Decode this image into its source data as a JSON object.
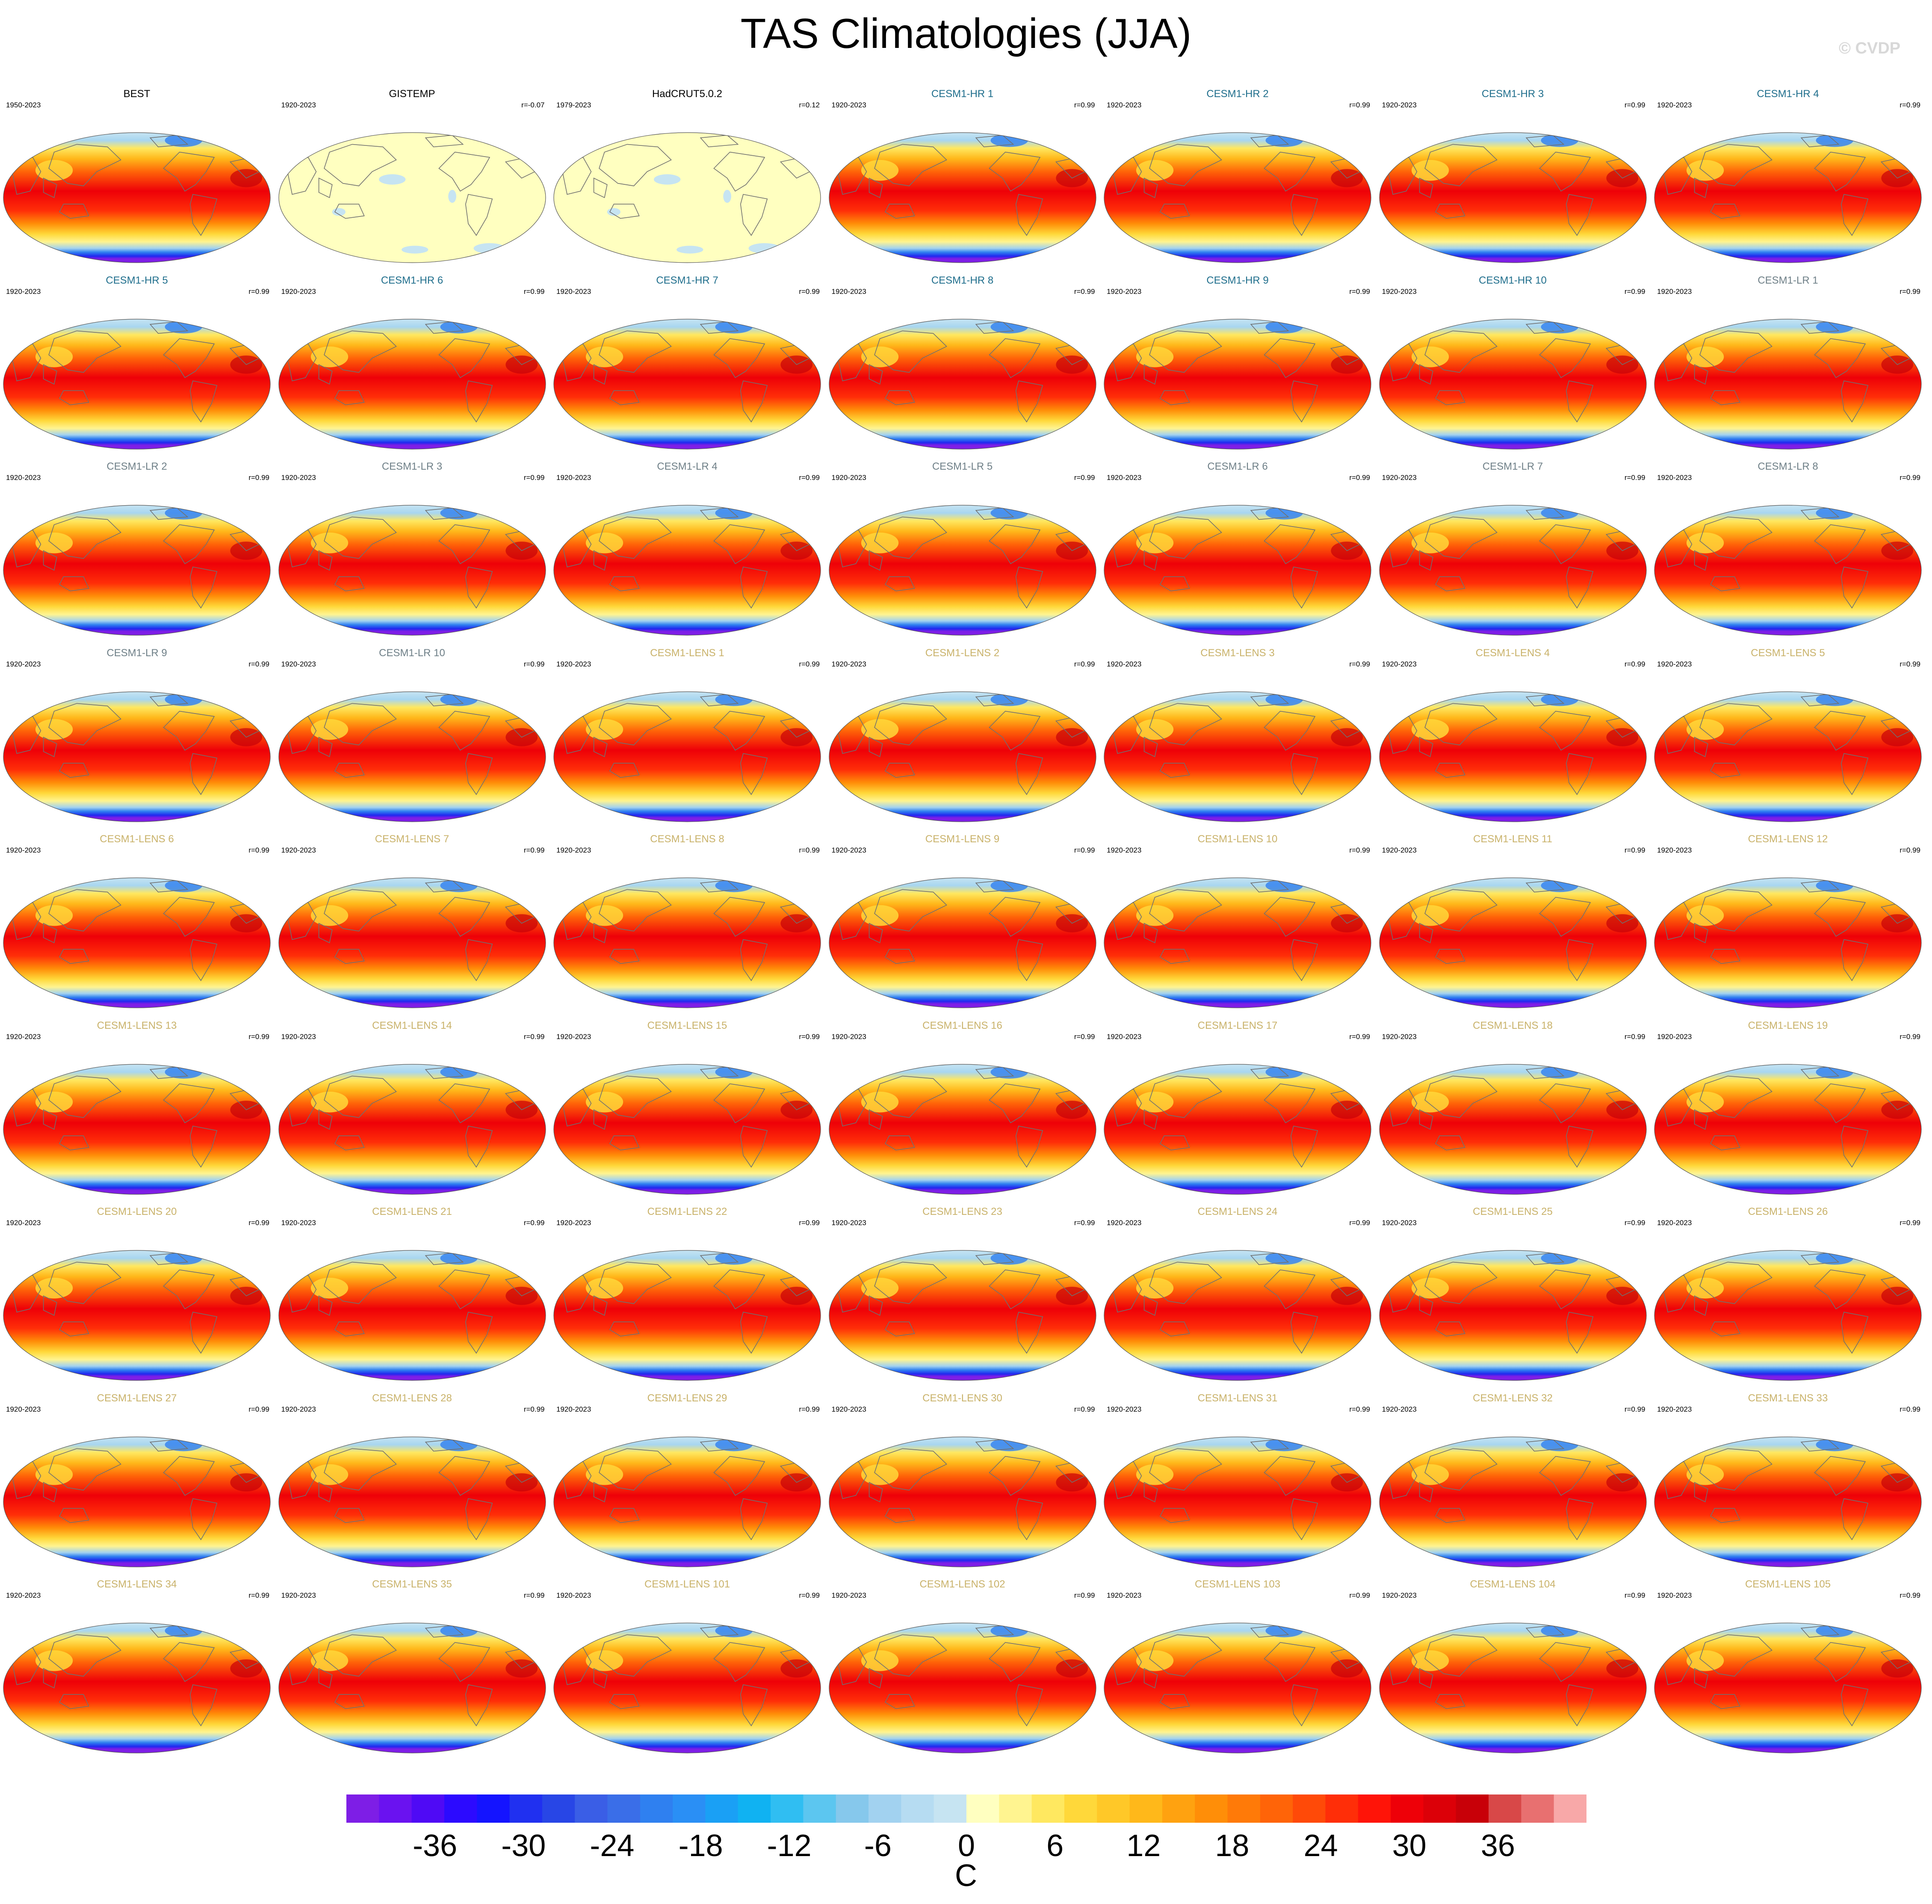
{
  "title": "TAS Climatologies (JJA)",
  "watermark": "© CVDP",
  "colors": {
    "obs_title": "#000000",
    "hr_title": "#1f6e8c",
    "lr_title": "#6e7f87",
    "lens_title": "#c9b26a"
  },
  "panels": [
    {
      "title": "BEST",
      "period": "1950-2023",
      "corr": "",
      "group": "obs",
      "field": "full"
    },
    {
      "title": "GISTEMP",
      "period": "1920-2023",
      "corr": "r=-0.07",
      "group": "obs",
      "field": "anomaly"
    },
    {
      "title": "HadCRUT5.0.2",
      "period": "1979-2023",
      "corr": "r=0.12",
      "group": "obs",
      "field": "anomaly"
    },
    {
      "title": "CESM1-HR 1",
      "period": "1920-2023",
      "corr": "r=0.99",
      "group": "hr",
      "field": "full"
    },
    {
      "title": "CESM1-HR 2",
      "period": "1920-2023",
      "corr": "r=0.99",
      "group": "hr",
      "field": "full"
    },
    {
      "title": "CESM1-HR 3",
      "period": "1920-2023",
      "corr": "r=0.99",
      "group": "hr",
      "field": "full"
    },
    {
      "title": "CESM1-HR 4",
      "period": "1920-2023",
      "corr": "r=0.99",
      "group": "hr",
      "field": "full"
    },
    {
      "title": "CESM1-HR 5",
      "period": "1920-2023",
      "corr": "r=0.99",
      "group": "hr",
      "field": "full"
    },
    {
      "title": "CESM1-HR 6",
      "period": "1920-2023",
      "corr": "r=0.99",
      "group": "hr",
      "field": "full"
    },
    {
      "title": "CESM1-HR 7",
      "period": "1920-2023",
      "corr": "r=0.99",
      "group": "hr",
      "field": "full"
    },
    {
      "title": "CESM1-HR 8",
      "period": "1920-2023",
      "corr": "r=0.99",
      "group": "hr",
      "field": "full"
    },
    {
      "title": "CESM1-HR 9",
      "period": "1920-2023",
      "corr": "r=0.99",
      "group": "hr",
      "field": "full"
    },
    {
      "title": "CESM1-HR 10",
      "period": "1920-2023",
      "corr": "r=0.99",
      "group": "hr",
      "field": "full"
    },
    {
      "title": "CESM1-LR 1",
      "period": "1920-2023",
      "corr": "r=0.99",
      "group": "lr",
      "field": "full"
    },
    {
      "title": "CESM1-LR 2",
      "period": "1920-2023",
      "corr": "r=0.99",
      "group": "lr",
      "field": "full"
    },
    {
      "title": "CESM1-LR 3",
      "period": "1920-2023",
      "corr": "r=0.99",
      "group": "lr",
      "field": "full"
    },
    {
      "title": "CESM1-LR 4",
      "period": "1920-2023",
      "corr": "r=0.99",
      "group": "lr",
      "field": "full"
    },
    {
      "title": "CESM1-LR 5",
      "period": "1920-2023",
      "corr": "r=0.99",
      "group": "lr",
      "field": "full"
    },
    {
      "title": "CESM1-LR 6",
      "period": "1920-2023",
      "corr": "r=0.99",
      "group": "lr",
      "field": "full"
    },
    {
      "title": "CESM1-LR 7",
      "period": "1920-2023",
      "corr": "r=0.99",
      "group": "lr",
      "field": "full"
    },
    {
      "title": "CESM1-LR 8",
      "period": "1920-2023",
      "corr": "r=0.99",
      "group": "lr",
      "field": "full"
    },
    {
      "title": "CESM1-LR 9",
      "period": "1920-2023",
      "corr": "r=0.99",
      "group": "lr",
      "field": "full"
    },
    {
      "title": "CESM1-LR 10",
      "period": "1920-2023",
      "corr": "r=0.99",
      "group": "lr",
      "field": "full"
    },
    {
      "title": "CESM1-LENS 1",
      "period": "1920-2023",
      "corr": "r=0.99",
      "group": "lens",
      "field": "full"
    },
    {
      "title": "CESM1-LENS 2",
      "period": "1920-2023",
      "corr": "r=0.99",
      "group": "lens",
      "field": "full"
    },
    {
      "title": "CESM1-LENS 3",
      "period": "1920-2023",
      "corr": "r=0.99",
      "group": "lens",
      "field": "full"
    },
    {
      "title": "CESM1-LENS 4",
      "period": "1920-2023",
      "corr": "r=0.99",
      "group": "lens",
      "field": "full"
    },
    {
      "title": "CESM1-LENS 5",
      "period": "1920-2023",
      "corr": "r=0.99",
      "group": "lens",
      "field": "full"
    },
    {
      "title": "CESM1-LENS 6",
      "period": "1920-2023",
      "corr": "r=0.99",
      "group": "lens",
      "field": "full"
    },
    {
      "title": "CESM1-LENS 7",
      "period": "1920-2023",
      "corr": "r=0.99",
      "group": "lens",
      "field": "full"
    },
    {
      "title": "CESM1-LENS 8",
      "period": "1920-2023",
      "corr": "r=0.99",
      "group": "lens",
      "field": "full"
    },
    {
      "title": "CESM1-LENS 9",
      "period": "1920-2023",
      "corr": "r=0.99",
      "group": "lens",
      "field": "full"
    },
    {
      "title": "CESM1-LENS 10",
      "period": "1920-2023",
      "corr": "r=0.99",
      "group": "lens",
      "field": "full"
    },
    {
      "title": "CESM1-LENS 11",
      "period": "1920-2023",
      "corr": "r=0.99",
      "group": "lens",
      "field": "full"
    },
    {
      "title": "CESM1-LENS 12",
      "period": "1920-2023",
      "corr": "r=0.99",
      "group": "lens",
      "field": "full"
    },
    {
      "title": "CESM1-LENS 13",
      "period": "1920-2023",
      "corr": "r=0.99",
      "group": "lens",
      "field": "full"
    },
    {
      "title": "CESM1-LENS 14",
      "period": "1920-2023",
      "corr": "r=0.99",
      "group": "lens",
      "field": "full"
    },
    {
      "title": "CESM1-LENS 15",
      "period": "1920-2023",
      "corr": "r=0.99",
      "group": "lens",
      "field": "full"
    },
    {
      "title": "CESM1-LENS 16",
      "period": "1920-2023",
      "corr": "r=0.99",
      "group": "lens",
      "field": "full"
    },
    {
      "title": "CESM1-LENS 17",
      "period": "1920-2023",
      "corr": "r=0.99",
      "group": "lens",
      "field": "full"
    },
    {
      "title": "CESM1-LENS 18",
      "period": "1920-2023",
      "corr": "r=0.99",
      "group": "lens",
      "field": "full"
    },
    {
      "title": "CESM1-LENS 19",
      "period": "1920-2023",
      "corr": "r=0.99",
      "group": "lens",
      "field": "full"
    },
    {
      "title": "CESM1-LENS 20",
      "period": "1920-2023",
      "corr": "r=0.99",
      "group": "lens",
      "field": "full"
    },
    {
      "title": "CESM1-LENS 21",
      "period": "1920-2023",
      "corr": "r=0.99",
      "group": "lens",
      "field": "full"
    },
    {
      "title": "CESM1-LENS 22",
      "period": "1920-2023",
      "corr": "r=0.99",
      "group": "lens",
      "field": "full"
    },
    {
      "title": "CESM1-LENS 23",
      "period": "1920-2023",
      "corr": "r=0.99",
      "group": "lens",
      "field": "full"
    },
    {
      "title": "CESM1-LENS 24",
      "period": "1920-2023",
      "corr": "r=0.99",
      "group": "lens",
      "field": "full"
    },
    {
      "title": "CESM1-LENS 25",
      "period": "1920-2023",
      "corr": "r=0.99",
      "group": "lens",
      "field": "full"
    },
    {
      "title": "CESM1-LENS 26",
      "period": "1920-2023",
      "corr": "r=0.99",
      "group": "lens",
      "field": "full"
    },
    {
      "title": "CESM1-LENS 27",
      "period": "1920-2023",
      "corr": "r=0.99",
      "group": "lens",
      "field": "full"
    },
    {
      "title": "CESM1-LENS 28",
      "period": "1920-2023",
      "corr": "r=0.99",
      "group": "lens",
      "field": "full"
    },
    {
      "title": "CESM1-LENS 29",
      "period": "1920-2023",
      "corr": "r=0.99",
      "group": "lens",
      "field": "full"
    },
    {
      "title": "CESM1-LENS 30",
      "period": "1920-2023",
      "corr": "r=0.99",
      "group": "lens",
      "field": "full"
    },
    {
      "title": "CESM1-LENS 31",
      "period": "1920-2023",
      "corr": "r=0.99",
      "group": "lens",
      "field": "full"
    },
    {
      "title": "CESM1-LENS 32",
      "period": "1920-2023",
      "corr": "r=0.99",
      "group": "lens",
      "field": "full"
    },
    {
      "title": "CESM1-LENS 33",
      "period": "1920-2023",
      "corr": "r=0.99",
      "group": "lens",
      "field": "full"
    },
    {
      "title": "CESM1-LENS 34",
      "period": "1920-2023",
      "corr": "r=0.99",
      "group": "lens",
      "field": "full"
    },
    {
      "title": "CESM1-LENS 35",
      "period": "1920-2023",
      "corr": "r=0.99",
      "group": "lens",
      "field": "full"
    },
    {
      "title": "CESM1-LENS 101",
      "period": "1920-2023",
      "corr": "r=0.99",
      "group": "lens",
      "field": "full"
    },
    {
      "title": "CESM1-LENS 102",
      "period": "1920-2023",
      "corr": "r=0.99",
      "group": "lens",
      "field": "full"
    },
    {
      "title": "CESM1-LENS 103",
      "period": "1920-2023",
      "corr": "r=0.99",
      "group": "lens",
      "field": "full"
    },
    {
      "title": "CESM1-LENS 104",
      "period": "1920-2023",
      "corr": "r=0.99",
      "group": "lens",
      "field": "full"
    },
    {
      "title": "CESM1-LENS 105",
      "period": "1920-2023",
      "corr": "r=0.99",
      "group": "lens",
      "field": "full"
    }
  ],
  "colorbar": {
    "units": "C",
    "tick_labels": [
      "-36",
      "-30",
      "-24",
      "-18",
      "-12",
      "-6",
      "0",
      "6",
      "12",
      "18",
      "24",
      "30",
      "36"
    ],
    "colors": [
      "#7e1ee6",
      "#6a12f0",
      "#4f0af5",
      "#2c0aff",
      "#1414ff",
      "#2030f0",
      "#2846e6",
      "#3a5ee6",
      "#3a6ee8",
      "#2f80f0",
      "#2a8ff5",
      "#1aa0f5",
      "#10b2f2",
      "#30bef2",
      "#5cc6f0",
      "#86c8ec",
      "#a2d2f0",
      "#b6dcf2",
      "#c6e4f2",
      "#ffffc0",
      "#fff490",
      "#ffe860",
      "#ffd83a",
      "#ffc828",
      "#ffb81a",
      "#ffa210",
      "#ff8e08",
      "#ff7a08",
      "#ff6408",
      "#ff4a08",
      "#ff2e08",
      "#ff1408",
      "#ee0008",
      "#dc0008",
      "#c80008",
      "#d84848",
      "#e87070",
      "#f8a8a8"
    ],
    "range": [
      -42,
      42
    ]
  }
}
